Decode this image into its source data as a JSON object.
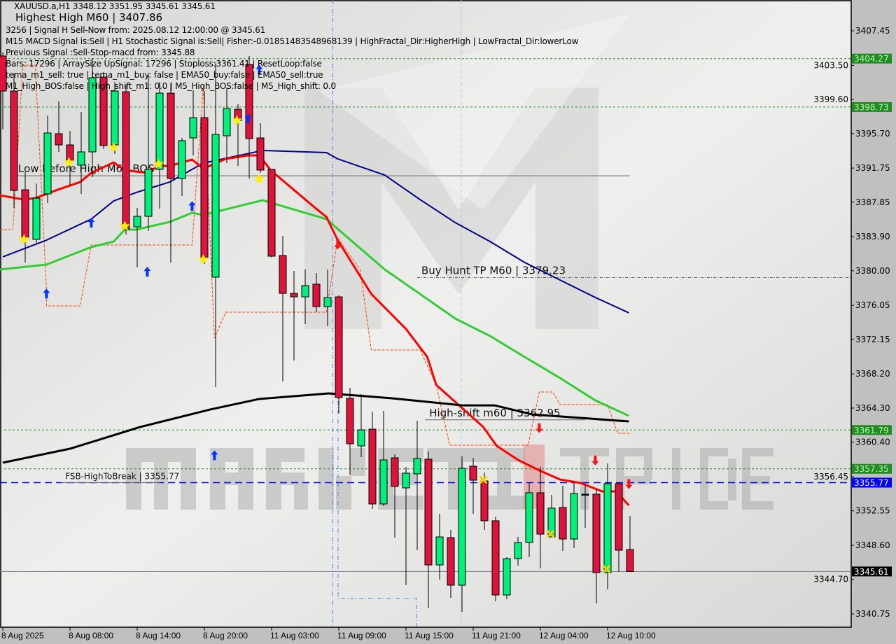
{
  "header": {
    "symbol_line": "XAUUSD.a,H1  3348.12 3351.95 3345.61 3345.61",
    "overlay": "Highest High   M60 | 3407.86",
    "lines": [
      "3256 | Signal H Sell-Now from: 2025.08.12 12:00:00 @ 3345.61",
      "M15 MACD Signal is:Sell | H1 Stochastic Signal is:Sell| Fisher:-0.0185148354896813​9 | HighFractal_Dir:HigherHigh | LowFractal_Dir:lowerLow",
      "Previous Signal :Sell-Stop-macd from: 3345.88",
      "Bars: 17296 | ArraySize UpSignal: 17296 | Stoploss:3361.41 | ResetLoop:false",
      "tema_m1_sell: true | tema_m1_buy: false | EMA50_buy:false | EMA50_sell:true",
      "M1_High_BOS:false | High_shift_m1: 0.0 | M5_High_BOS:false | M5_High_shift: 0.0"
    ]
  },
  "watermark": {
    "text_left": "MARKETZ",
    "text_mid": "I",
    "text_right": "TRADE"
  },
  "chart_data": {
    "type": "candlestick",
    "symbol": "XAUUSD.a",
    "timeframe": "H1",
    "colors": {
      "bull": "#00f07a",
      "bear": "#dc143c",
      "background": "#e4e4e2"
    },
    "y_range": [
      3338.9,
      3411.0
    ],
    "y_ticks": [
      "3407.45",
      "3403.50",
      "3399.60",
      "3395.70",
      "3391.75",
      "3387.85",
      "3383.90",
      "3380.00",
      "3376.05",
      "3372.15",
      "3368.20",
      "3364.30",
      "3360.40",
      "3356.45",
      "3352.55",
      "3348.60",
      "3344.70",
      "3340.75"
    ],
    "x_labels": [
      {
        "index": 0,
        "label": "8 Aug 2025"
      },
      {
        "index": 6,
        "label": "8 Aug 08:00"
      },
      {
        "index": 12,
        "label": "8 Aug 14:00"
      },
      {
        "index": 18,
        "label": "8 Aug 20:00"
      },
      {
        "index": 24,
        "label": "11 Aug 03:00"
      },
      {
        "index": 30,
        "label": "11 Aug 09:00"
      },
      {
        "index": 36,
        "label": "11 Aug 15:00"
      },
      {
        "index": 42,
        "label": "11 Aug 21:00"
      },
      {
        "index": 48,
        "label": "12 Aug 04:00"
      },
      {
        "index": 54,
        "label": "12 Aug 10:00"
      }
    ],
    "candles_ohlc": [
      [
        3404.57,
        3404.97,
        3396.16,
        3400.56
      ],
      [
        3400.56,
        3402.56,
        3387.19,
        3389.19
      ],
      [
        3389.27,
        3391.28,
        3380.95,
        3383.75
      ],
      [
        3383.59,
        3389.99,
        3383.19,
        3388.31
      ],
      [
        3388.79,
        3397.76,
        3387.75,
        3395.76
      ],
      [
        3395.68,
        3399.36,
        3393.6,
        3394.4
      ],
      [
        3394.4,
        3396.0,
        3389.75,
        3392.56
      ],
      [
        3392.08,
        3398.16,
        3388.79,
        3393.6
      ],
      [
        3393.6,
        3404.33,
        3390.71,
        3402.08
      ],
      [
        3402.16,
        3402.72,
        3393.92,
        3394.32
      ],
      [
        3394.4,
        3401.6,
        3393.36,
        3400.56
      ],
      [
        3400.48,
        3401.28,
        3384.15,
        3384.79
      ],
      [
        3385.03,
        3387.19,
        3380.39,
        3386.23
      ],
      [
        3386.23,
        3402.4,
        3384.55,
        3391.6
      ],
      [
        3391.6,
        3401.6,
        3387.11,
        3400.32
      ],
      [
        3400.32,
        3401.44,
        3380.95,
        3390.55
      ],
      [
        3390.55,
        3395.2,
        3388.55,
        3394.88
      ],
      [
        3395.2,
        3400.64,
        3393.2,
        3397.52
      ],
      [
        3397.52,
        3400.56,
        3380.79,
        3381.51
      ],
      [
        3379.27,
        3403.76,
        3366.7,
        3395.6
      ],
      [
        3395.44,
        3400.96,
        3392.32,
        3398.56
      ],
      [
        3398.48,
        3399.04,
        3392.0,
        3397.2
      ],
      [
        3403.6,
        3404.57,
        3390.55,
        3395.12
      ],
      [
        3395.2,
        3396.88,
        3391.2,
        3391.52
      ],
      [
        3391.6,
        3391.6,
        3381.51,
        3381.67
      ],
      [
        3381.75,
        3383.99,
        3367.34,
        3377.42
      ],
      [
        3377.42,
        3379.99,
        3369.74,
        3377.02
      ],
      [
        3377.02,
        3380.15,
        3373.9,
        3378.31
      ],
      [
        3378.47,
        3379.75,
        3375.26,
        3375.9
      ],
      [
        3375.9,
        3380.15,
        3373.66,
        3376.94
      ],
      [
        3377.02,
        3377.18,
        3363.73,
        3365.5
      ],
      [
        3365.42,
        3366.62,
        3356.69,
        3360.21
      ],
      [
        3359.97,
        3365.9,
        3358.69,
        3361.81
      ],
      [
        3361.89,
        3363.89,
        3352.77,
        3353.33
      ],
      [
        3353.33,
        3363.98,
        3353.09,
        3358.37
      ],
      [
        3358.61,
        3359.01,
        3349.48,
        3355.33
      ],
      [
        3355.17,
        3357.57,
        3344.04,
        3356.85
      ],
      [
        3356.77,
        3362.85,
        3348.04,
        3358.53
      ],
      [
        3358.45,
        3359.33,
        3341.4,
        3346.36
      ],
      [
        3346.36,
        3352.21,
        3344.68,
        3349.56
      ],
      [
        3349.48,
        3350.36,
        3342.6,
        3344.04
      ],
      [
        3344.04,
        3358.77,
        3341.0,
        3357.41
      ],
      [
        3357.65,
        3358.61,
        3352.21,
        3356.05
      ],
      [
        3355.97,
        3356.93,
        3350.36,
        3351.41
      ],
      [
        3351.41,
        3351.89,
        3342.2,
        3342.92
      ],
      [
        3342.92,
        3347.24,
        3342.44,
        3347.08
      ],
      [
        3347.08,
        3349.56,
        3346.28,
        3348.92
      ],
      [
        3348.92,
        3355.81,
        3347.24,
        3354.61
      ],
      [
        3354.61,
        3357.57,
        3345.96,
        3349.88
      ],
      [
        3349.56,
        3354.37,
        3349.56,
        3352.85
      ],
      [
        3352.93,
        3355.41,
        3347.96,
        3349.32
      ],
      [
        3349.32,
        3355.73,
        3348.28,
        3354.53
      ],
      [
        3354.45,
        3355.65,
        3350.6,
        3354.45
      ],
      [
        3354.45,
        3355.01,
        3341.96,
        3345.48
      ],
      [
        3345.48,
        3357.97,
        3343.56,
        3355.65
      ],
      [
        3355.65,
        3355.81,
        3345.56,
        3348.04
      ],
      [
        3348.12,
        3351.95,
        3345.61,
        3345.61
      ]
    ],
    "indicator_lines": [
      {
        "color": "#00008b",
        "width": 2,
        "points": [
          [
            0,
            3381.59
          ],
          [
            3.9,
            3383.51
          ],
          [
            7.9,
            3385.91
          ],
          [
            9.9,
            3387.99
          ],
          [
            11.9,
            3388.95
          ],
          [
            14.9,
            3390.15
          ],
          [
            17.9,
            3392.32
          ],
          [
            23.2,
            3393.76
          ],
          [
            28.9,
            3393.52
          ],
          [
            29.9,
            3392.8
          ],
          [
            34.1,
            3390.95
          ],
          [
            37.25,
            3388.15
          ],
          [
            40.4,
            3385.51
          ],
          [
            43.5,
            3383.35
          ],
          [
            46.6,
            3380.95
          ],
          [
            49.75,
            3378.95
          ],
          [
            52.9,
            3376.95
          ],
          [
            55.9,
            3375.19
          ]
        ]
      },
      {
        "color": "#32cd32",
        "width": 3,
        "points": [
          [
            -0.25,
            3380.15
          ],
          [
            3.9,
            3380.71
          ],
          [
            7.9,
            3382.71
          ],
          [
            9.9,
            3383.35
          ],
          [
            10.9,
            3384.71
          ],
          [
            11.9,
            3384.71
          ],
          [
            14.9,
            3385.59
          ],
          [
            16.9,
            3386.63
          ],
          [
            17.9,
            3386.39
          ],
          [
            23.2,
            3388.07
          ],
          [
            28.9,
            3385.91
          ],
          [
            29.9,
            3384.79
          ],
          [
            34.1,
            3380.15
          ],
          [
            37.25,
            3377.35
          ],
          [
            40.4,
            3374.54
          ],
          [
            43.5,
            3372.54
          ],
          [
            46.6,
            3370.14
          ],
          [
            49.75,
            3367.74
          ],
          [
            52.9,
            3365.18
          ],
          [
            55.9,
            3363.41
          ]
        ]
      },
      {
        "color": "#ff0000",
        "width": 3,
        "points": [
          [
            -0.25,
            3388.63
          ],
          [
            1.9,
            3388.15
          ],
          [
            2.9,
            3388.31
          ],
          [
            3.9,
            3388.79
          ],
          [
            4.9,
            3389.27
          ],
          [
            6.9,
            3390.15
          ],
          [
            7.9,
            3391.2
          ],
          [
            9.9,
            3392.4
          ],
          [
            10.9,
            3391.52
          ],
          [
            12.9,
            3391.2
          ],
          [
            13.9,
            3391.99
          ],
          [
            14.9,
            3391.99
          ],
          [
            16.9,
            3392.72
          ],
          [
            17.9,
            3391.68
          ],
          [
            19.9,
            3392.8
          ],
          [
            21.9,
            3393.2
          ],
          [
            22.9,
            3393.2
          ],
          [
            23.9,
            3391.52
          ],
          [
            25.9,
            3389.35
          ],
          [
            27.9,
            3387.19
          ],
          [
            28.9,
            3386.15
          ],
          [
            29.9,
            3383.51
          ],
          [
            32.9,
            3377.35
          ],
          [
            36,
            3373.35
          ],
          [
            37.9,
            3370.14
          ],
          [
            38.7,
            3366.94
          ],
          [
            42.9,
            3362.13
          ],
          [
            44.1,
            3359.97
          ],
          [
            46,
            3358.37
          ],
          [
            47.9,
            3357.17
          ],
          [
            49.75,
            3356.13
          ],
          [
            51.6,
            3355.73
          ],
          [
            53.5,
            3354.77
          ],
          [
            54.75,
            3354.77
          ],
          [
            55.9,
            3353.17
          ]
        ]
      },
      {
        "color": "#000000",
        "width": 3,
        "points": [
          [
            0,
            3358.05
          ],
          [
            6,
            3359.65
          ],
          [
            12.25,
            3362.13
          ],
          [
            18.5,
            3364.13
          ],
          [
            22.9,
            3365.34
          ],
          [
            29.1,
            3365.98
          ],
          [
            34.75,
            3365.42
          ],
          [
            41,
            3364.61
          ],
          [
            43.9,
            3364.61
          ],
          [
            47.25,
            3363.58
          ],
          [
            55.9,
            3362.77
          ]
        ]
      }
    ],
    "fractal_step_line": {
      "color": "#ff4500",
      "points": [
        [
          -0.25,
          3384.71
        ],
        [
          0.9,
          3384.71
        ],
        [
          1.8,
          3403.52
        ],
        [
          2.9,
          3403.52
        ],
        [
          3.9,
          3377.9
        ],
        [
          3.9,
          3375.98
        ],
        [
          6.9,
          3375.98
        ],
        [
          7.9,
          3382.95
        ],
        [
          16.9,
          3382.95
        ],
        [
          17.9,
          3401.12
        ],
        [
          18.9,
          3372.3
        ],
        [
          19.9,
          3375.26
        ],
        [
          28.9,
          3375.26
        ],
        [
          29.9,
          3383.75
        ],
        [
          31.9,
          3380.15
        ],
        [
          32.9,
          3370.94
        ],
        [
          37.25,
          3370.94
        ],
        [
          38.7,
          3366.94
        ],
        [
          39.9,
          3360.05
        ],
        [
          46.9,
          3360.05
        ],
        [
          47.9,
          3366.14
        ],
        [
          49.1,
          3366.14
        ],
        [
          49.75,
          3364.7
        ],
        [
          54,
          3364.7
        ],
        [
          54.9,
          3361.41
        ],
        [
          56,
          3361.41
        ]
      ]
    },
    "levels": [
      {
        "price": 3404.27,
        "label": "3404.27",
        "color": "#228b22",
        "style": "dotted"
      },
      {
        "price": 3398.73,
        "label": "3398.73",
        "color": "#228b22",
        "style": "dotted"
      },
      {
        "price": 3361.79,
        "label": "3361.79",
        "color": "#228b22",
        "style": "dotted"
      },
      {
        "price": 3357.35,
        "label": "3357.35",
        "color": "#228b22",
        "style": "dotted"
      },
      {
        "price": 3355.77,
        "label": "3355.77",
        "color": "#0000ff",
        "style": "dashed"
      },
      {
        "price": 3345.61,
        "label": "3345.61",
        "color": "#000000",
        "style": "solid"
      }
    ],
    "annotations": [
      {
        "text": "Low before High   M60 BOS",
        "price": 3390.87,
        "from": 1,
        "to": 56,
        "size": 15
      },
      {
        "text": "Buy Hunt TP M60 | 3379.23",
        "price": 3379.23,
        "from": 37,
        "to": 76,
        "size": 15
      },
      {
        "text": "High-shift m60 | 3362.95",
        "price": 3362.95,
        "from": 37.7,
        "to": 52,
        "size": 15
      },
      {
        "text": "FSB-HighToBreak | 3355.77",
        "price": 3355.77,
        "from": 5.2,
        "to": 14,
        "size": 12
      }
    ],
    "markers": {
      "up_arrows": [
        [
          3.9,
          3377.4
        ],
        [
          7.9,
          3385.5
        ],
        [
          12.9,
          3379.9
        ],
        [
          16.9,
          3387.4
        ],
        [
          18.9,
          3358.9
        ],
        [
          21.9,
          3397.4
        ],
        [
          22.9,
          3403.0
        ]
      ],
      "down_arrows": [
        [
          29.9,
          3383.0
        ],
        [
          47.9,
          3362.0
        ],
        [
          52.9,
          3358.3
        ],
        [
          55.9,
          3355.6
        ]
      ],
      "stars": [
        [
          1.9,
          3383.6
        ],
        [
          5.9,
          3392.4
        ],
        [
          9.9,
          3394.1
        ],
        [
          10.9,
          3385.1
        ],
        [
          13.9,
          3392.2
        ],
        [
          17.9,
          3381.3
        ],
        [
          20.9,
          3397.2
        ],
        [
          22.9,
          3390.5
        ]
      ],
      "crosses": [
        [
          42.9,
          3356.1
        ],
        [
          48.9,
          3349.9
        ],
        [
          53.9,
          3345.9
        ]
      ]
    }
  }
}
